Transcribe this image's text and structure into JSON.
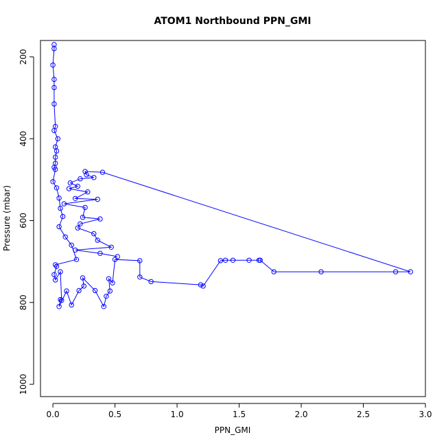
{
  "chart_data": {
    "type": "scatter",
    "title": "ATOM1 Northbound PPN_GMI",
    "xlabel": "PPN_GMI",
    "ylabel": "Pressure (mbar)",
    "xlim": [
      -0.1,
      3.0
    ],
    "ylim": [
      1030,
      160
    ],
    "y_axis_reversed": true,
    "xticks": [
      0.0,
      0.5,
      1.0,
      1.5,
      2.0,
      2.5,
      3.0
    ],
    "xtick_labels": [
      "0.0",
      "0.5",
      "1.0",
      "1.5",
      "2.0",
      "2.5",
      "3.0"
    ],
    "yticks": [
      200,
      400,
      600,
      800,
      1000
    ],
    "ytick_labels": [
      "200",
      "400",
      "600",
      "800",
      "1000"
    ],
    "grid": false,
    "line_color": "#0000ff",
    "marker": "open-circle",
    "series": [
      {
        "values": [
          [
            0.01,
            170
          ],
          [
            0.01,
            180
          ],
          [
            0.0,
            220
          ],
          [
            0.01,
            255
          ],
          [
            0.01,
            275
          ],
          [
            0.01,
            315
          ],
          [
            0.02,
            370
          ],
          [
            0.01,
            380
          ],
          [
            0.04,
            400
          ],
          [
            0.02,
            420
          ],
          [
            0.03,
            430
          ],
          [
            0.02,
            445
          ],
          [
            0.02,
            460
          ],
          [
            0.01,
            470
          ],
          [
            0.02,
            475
          ],
          [
            0.0,
            505
          ],
          [
            0.03,
            520
          ],
          [
            0.05,
            545
          ],
          [
            0.06,
            570
          ],
          [
            0.08,
            590
          ],
          [
            0.05,
            615
          ],
          [
            0.1,
            640
          ],
          [
            0.15,
            660
          ],
          [
            0.19,
            695
          ],
          [
            0.02,
            708
          ],
          [
            0.03,
            712
          ],
          [
            0.01,
            732
          ],
          [
            0.02,
            745
          ],
          [
            0.06,
            725
          ],
          [
            0.07,
            795
          ],
          [
            0.06,
            793
          ],
          [
            0.05,
            810
          ],
          [
            0.11,
            772
          ],
          [
            0.15,
            806
          ],
          [
            0.21,
            771
          ],
          [
            0.25,
            760
          ],
          [
            0.24,
            740
          ],
          [
            0.34,
            771
          ],
          [
            0.41,
            810
          ],
          [
            0.43,
            785
          ],
          [
            0.46,
            772
          ],
          [
            0.45,
            742
          ],
          [
            0.48,
            752
          ],
          [
            0.5,
            695
          ],
          [
            0.7,
            698
          ],
          [
            0.7,
            738
          ],
          [
            0.79,
            749
          ],
          [
            1.19,
            757
          ],
          [
            1.21,
            760
          ],
          [
            1.35,
            698
          ],
          [
            1.39,
            697
          ],
          [
            1.45,
            697
          ],
          [
            1.58,
            697
          ],
          [
            1.66,
            697
          ],
          [
            1.67,
            697
          ],
          [
            1.78,
            725
          ],
          [
            2.16,
            725
          ],
          [
            2.76,
            725
          ],
          [
            2.88,
            725
          ],
          [
            0.4,
            482
          ],
          [
            0.26,
            480
          ],
          [
            0.27,
            488
          ],
          [
            0.33,
            495
          ],
          [
            0.22,
            498
          ],
          [
            0.14,
            508
          ],
          [
            0.2,
            516
          ],
          [
            0.13,
            522
          ],
          [
            0.28,
            530
          ],
          [
            0.18,
            546
          ],
          [
            0.36,
            548
          ],
          [
            0.09,
            559
          ],
          [
            0.26,
            568
          ],
          [
            0.24,
            592
          ],
          [
            0.38,
            596
          ],
          [
            0.22,
            608
          ],
          [
            0.2,
            618
          ],
          [
            0.33,
            632
          ],
          [
            0.36,
            648
          ],
          [
            0.47,
            665
          ],
          [
            0.18,
            672
          ],
          [
            0.38,
            680
          ],
          [
            0.52,
            688
          ]
        ]
      }
    ]
  }
}
